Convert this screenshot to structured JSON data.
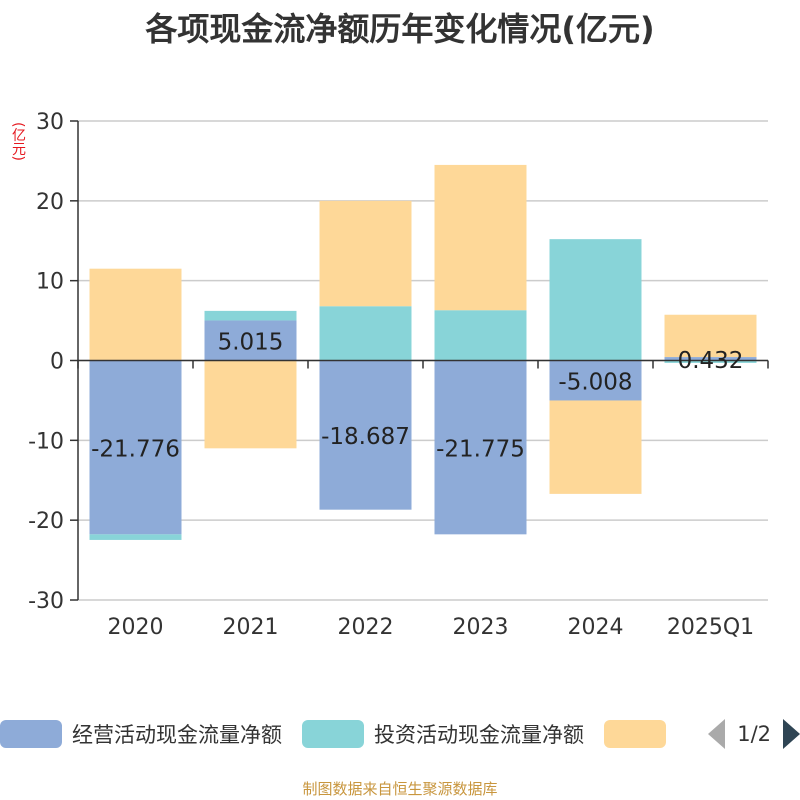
{
  "page": {
    "title": "各项现金流净额历年变化情况(亿元)",
    "unit_label": "(亿元)",
    "source": "制图数据来自恒生聚源数据库"
  },
  "legend": {
    "items": [
      {
        "label": "经营活动现金流量净额",
        "color": "#8eabd8"
      },
      {
        "label": "投资活动现金流量净额",
        "color": "#88d4d8"
      },
      {
        "label": "",
        "color": "#fed898"
      }
    ],
    "page_indicator": "1/2",
    "prev_icon": "triangle-left-icon",
    "next_icon": "triangle-right-icon"
  },
  "chart_data": {
    "type": "bar",
    "stacked": true,
    "categories": [
      "2020",
      "2021",
      "2022",
      "2023",
      "2024",
      "2025Q1"
    ],
    "ylim": [
      -30,
      30
    ],
    "yticks": [
      30,
      20,
      10,
      0,
      -10,
      -20,
      -30
    ],
    "grid": true,
    "series": [
      {
        "name": "经营活动现金流量净额",
        "color": "#8eabd8",
        "values": [
          -21.776,
          5.015,
          -18.687,
          -21.775,
          -5.008,
          0.432
        ],
        "labels": [
          "-21.776",
          "5.015",
          "-18.687",
          "-21.775",
          "-5.008",
          "0.432"
        ]
      },
      {
        "name": "投资活动现金流量净额",
        "color": "#88d4d8",
        "values": [
          -0.7,
          1.2,
          6.8,
          6.3,
          15.2,
          -0.3
        ]
      },
      {
        "name": "",
        "color": "#fed898",
        "values": [
          11.5,
          -11.0,
          13.2,
          18.2,
          -11.7,
          5.3
        ]
      }
    ]
  }
}
